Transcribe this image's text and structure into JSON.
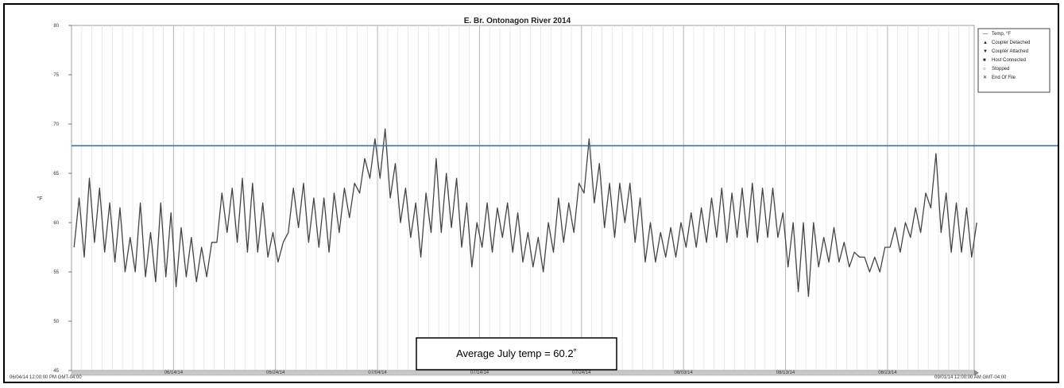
{
  "chart_data": {
    "type": "line",
    "title": "E. Br. Ontonagon River 2014",
    "ylabel": "°F",
    "xlabel": "",
    "ylim": [
      45,
      80
    ],
    "yticks": [
      45,
      50,
      55,
      60,
      65,
      70,
      75,
      80
    ],
    "grid": "vertical",
    "legend_position": "top-right",
    "start_label": "06/04/14 12:00:00 PM GMT-04:00",
    "end_label": "09/01/14 12:00:00 AM GMT-04:00",
    "date_ticks": [
      "06/14/14",
      "06/24/14",
      "07/04/14",
      "07/14/14",
      "07/24/14",
      "08/03/14",
      "08/13/14",
      "08/23/14"
    ],
    "legend": [
      {
        "symbol": "—",
        "label": "Temp, °F"
      },
      {
        "symbol": "▲",
        "label": "Coupler Detached"
      },
      {
        "symbol": "▼",
        "label": "Coupler Attached"
      },
      {
        "symbol": "■",
        "label": "Host Connected"
      },
      {
        "symbol": "○",
        "label": "Stopped"
      },
      {
        "symbol": "✕",
        "label": "End Of File"
      }
    ],
    "reference_line": {
      "value": 67.8,
      "color": "#3a6fb5"
    },
    "annotation": "Average July temp = 60.2˚",
    "series": [
      {
        "name": "Temp, °F",
        "color": "#444444",
        "x": [
          "2014-06-04",
          "2014-06-05",
          "2014-06-06",
          "2014-06-07",
          "2014-06-08",
          "2014-06-09",
          "2014-06-10",
          "2014-06-11",
          "2014-06-12",
          "2014-06-13",
          "2014-06-14",
          "2014-06-15",
          "2014-06-16",
          "2014-06-17",
          "2014-06-18",
          "2014-06-19",
          "2014-06-20",
          "2014-06-21",
          "2014-06-22",
          "2014-06-23",
          "2014-06-24",
          "2014-06-25",
          "2014-06-26",
          "2014-06-27",
          "2014-06-28",
          "2014-06-29",
          "2014-06-30",
          "2014-07-01",
          "2014-07-02",
          "2014-07-03",
          "2014-07-04",
          "2014-07-05",
          "2014-07-06",
          "2014-07-07",
          "2014-07-08",
          "2014-07-09",
          "2014-07-10",
          "2014-07-11",
          "2014-07-12",
          "2014-07-13",
          "2014-07-14",
          "2014-07-15",
          "2014-07-16",
          "2014-07-17",
          "2014-07-18",
          "2014-07-19",
          "2014-07-20",
          "2014-07-21",
          "2014-07-22",
          "2014-07-23",
          "2014-07-24",
          "2014-07-25",
          "2014-07-26",
          "2014-07-27",
          "2014-07-28",
          "2014-07-29",
          "2014-07-30",
          "2014-07-31",
          "2014-08-01",
          "2014-08-02",
          "2014-08-03",
          "2014-08-04",
          "2014-08-05",
          "2014-08-06",
          "2014-08-07",
          "2014-08-08",
          "2014-08-09",
          "2014-08-10",
          "2014-08-11",
          "2014-08-12",
          "2014-08-13",
          "2014-08-14",
          "2014-08-15",
          "2014-08-16",
          "2014-08-17",
          "2014-08-18",
          "2014-08-19",
          "2014-08-20",
          "2014-08-21",
          "2014-08-22",
          "2014-08-23",
          "2014-08-24",
          "2014-08-25",
          "2014-08-26",
          "2014-08-27",
          "2014-08-28",
          "2014-08-29",
          "2014-08-30",
          "2014-08-31"
        ],
        "max": [
          62.5,
          64.5,
          63.5,
          62.0,
          61.5,
          58.5,
          62.0,
          59.0,
          62.0,
          61.0,
          59.5,
          58.5,
          57.5,
          58.0,
          63.0,
          63.5,
          64.5,
          64.0,
          62.0,
          59.0,
          58.0,
          63.5,
          64.0,
          62.5,
          62.5,
          63.0,
          63.5,
          64.0,
          66.5,
          68.5,
          69.5,
          66.0,
          63.5,
          62.0,
          63.0,
          66.5,
          65.0,
          64.5,
          62.0,
          60.0,
          62.0,
          61.5,
          62.0,
          61.0,
          59.0,
          58.5,
          60.0,
          62.5,
          62.0,
          64.0,
          68.5,
          66.0,
          64.0,
          64.0,
          64.0,
          62.5,
          60.0,
          59.0,
          59.5,
          60.0,
          61.0,
          61.5,
          62.5,
          63.5,
          63.0,
          63.5,
          64.0,
          63.5,
          63.5,
          61.0,
          60.0,
          60.0,
          60.0,
          58.5,
          59.5,
          58.0,
          57.0,
          56.5,
          56.5,
          57.5,
          59.5,
          60.0,
          61.5,
          63.0,
          67.0,
          63.0,
          62.0,
          61.5,
          60.0
        ],
        "min": [
          57.5,
          56.5,
          58.0,
          57.0,
          56.0,
          55.0,
          55.0,
          54.5,
          54.0,
          54.5,
          53.5,
          54.5,
          54.0,
          54.5,
          58.0,
          59.0,
          58.0,
          57.0,
          57.0,
          56.5,
          56.0,
          59.0,
          59.5,
          58.0,
          57.5,
          57.0,
          59.0,
          60.5,
          63.0,
          64.5,
          64.5,
          62.5,
          60.0,
          58.5,
          56.5,
          59.0,
          59.0,
          59.5,
          57.5,
          55.5,
          57.5,
          57.0,
          58.5,
          57.0,
          56.0,
          55.5,
          55.0,
          57.0,
          58.0,
          59.0,
          63.0,
          62.0,
          59.5,
          58.5,
          60.0,
          58.0,
          56.0,
          56.0,
          56.5,
          56.5,
          57.5,
          57.5,
          58.0,
          58.5,
          58.0,
          58.5,
          58.5,
          58.0,
          58.5,
          58.5,
          55.5,
          53.0,
          52.5,
          55.5,
          56.0,
          56.0,
          55.5,
          56.5,
          55.0,
          55.0,
          57.5,
          57.0,
          58.5,
          59.0,
          61.5,
          59.0,
          57.0,
          57.0,
          56.5
        ]
      }
    ]
  }
}
